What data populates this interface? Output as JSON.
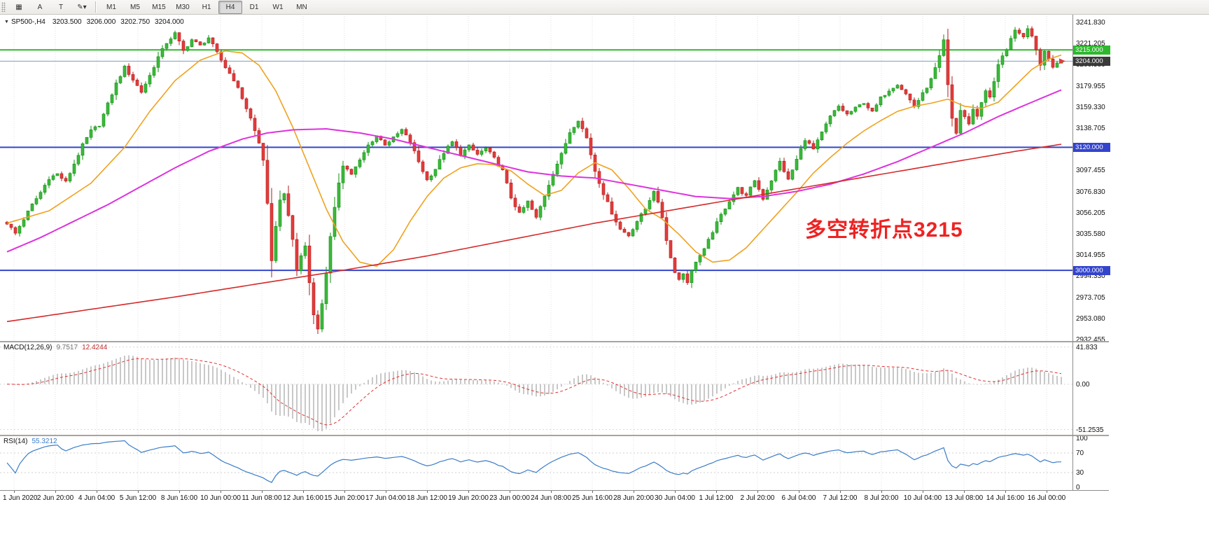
{
  "colors": {
    "up": "#0e8f0e",
    "up_fill": "#3cb83c",
    "down": "#b41818",
    "down_fill": "#e23c3c",
    "ma_fast": "#efa21e",
    "ma_mid": "#dd33dd",
    "ma_slow": "#d42a2a",
    "macd_hist": "#b5b5b5",
    "macd_signal": "#e03232",
    "rsi_line": "#3b7dc8",
    "grid": "#e2e2e2"
  },
  "toolbar": {
    "tools": [
      {
        "name": "grid-tool-button",
        "glyph": "▦"
      },
      {
        "name": "text-annotation-tool-button",
        "glyph": "A"
      },
      {
        "name": "text-tool-button",
        "glyph": "T"
      },
      {
        "name": "drawing-tools-dropdown-button",
        "glyph": "✎▾"
      }
    ],
    "timeframes": [
      "M1",
      "M5",
      "M15",
      "M30",
      "H1",
      "H4",
      "D1",
      "W1",
      "MN"
    ],
    "active_timeframe": "H4"
  },
  "header": {
    "dropdown_glyph": "▼",
    "symbol_period": "SP500-,H4",
    "open": "3203.500",
    "high": "3206.000",
    "low": "3202.750",
    "close": "3204.000"
  },
  "annotation": {
    "text": "多空转折点3215",
    "color": "#ee2222"
  },
  "price_axis": {
    "max": 3241.83,
    "step": 20.625,
    "ticks": [
      "3241.830",
      "3221.205",
      "3200.580",
      "3179.955",
      "3159.330",
      "3138.705",
      "3118.080",
      "3097.455",
      "3076.830",
      "3056.205",
      "3035.580",
      "3014.955",
      "2994.330",
      "2973.705",
      "2953.080",
      "2932.455"
    ]
  },
  "badges": [
    {
      "label": "3215.000",
      "value": 3215,
      "bg": "#2eb82e"
    },
    {
      "label": "3204.000",
      "value": 3204,
      "bg": "#3a3a3a"
    },
    {
      "label": "3120.000",
      "value": 3120,
      "bg": "#3344cc"
    },
    {
      "label": "3000.000",
      "value": 3000,
      "bg": "#3344cc"
    }
  ],
  "hlines": [
    {
      "value": 3215,
      "color": "#2eb82e",
      "width": 2
    },
    {
      "value": 3204,
      "color": "#7f9db9",
      "width": 1
    },
    {
      "value": 3120,
      "color": "#3344cc",
      "width": 2
    },
    {
      "value": 3000,
      "color": "#3344cc",
      "width": 2
    }
  ],
  "indicators": {
    "macd": {
      "label": "MACD(12,26,9)",
      "main_value": "9.7517",
      "signal_value": "12.4244",
      "scale": [
        "41.833",
        "0.00",
        "-51.2535"
      ],
      "fast": 12,
      "slow": 26,
      "signal": 9,
      "display_range": [
        -54,
        44
      ]
    },
    "rsi": {
      "label": "RSI(14)",
      "value": "55.3212",
      "period": 14,
      "levels": [
        "100",
        "70",
        "30",
        "0"
      ],
      "level_lines": [
        70,
        30
      ]
    }
  },
  "chart_data": {
    "type": "candlestick",
    "symbol": "SP500-",
    "period": "H4",
    "bars_total": 252,
    "price_min": 2932.455,
    "price_max": 3241.83,
    "x_labels": [
      "1 Jun 2020",
      "2 Jun 20:00",
      "4 Jun 04:00",
      "5 Jun 12:00",
      "8 Jun 16:00",
      "10 Jun 00:00",
      "11 Jun 08:00",
      "12 Jun 16:00",
      "15 Jun 20:00",
      "17 Jun 04:00",
      "18 Jun 12:00",
      "19 Jun 20:00",
      "23 Jun 00:00",
      "24 Jun 08:00",
      "25 Jun 16:00",
      "28 Jun 20:00",
      "30 Jun 04:00",
      "1 Jul 12:00",
      "2 Jul 20:00",
      "6 Jul 04:00",
      "7 Jul 12:00",
      "8 Jul 20:00",
      "10 Jul 04:00",
      "13 Jul 08:00",
      "14 Jul 16:00",
      "16 Jul 00:00"
    ],
    "close_keyframes": [
      [
        0,
        3046
      ],
      [
        2,
        3036
      ],
      [
        4,
        3050
      ],
      [
        6,
        3064
      ],
      [
        8,
        3076
      ],
      [
        10,
        3090
      ],
      [
        12,
        3094
      ],
      [
        14,
        3086
      ],
      [
        16,
        3104
      ],
      [
        18,
        3122
      ],
      [
        20,
        3136
      ],
      [
        22,
        3142
      ],
      [
        24,
        3162
      ],
      [
        26,
        3182
      ],
      [
        28,
        3198
      ],
      [
        30,
        3186
      ],
      [
        32,
        3174
      ],
      [
        34,
        3190
      ],
      [
        36,
        3208
      ],
      [
        38,
        3222
      ],
      [
        40,
        3231
      ],
      [
        42,
        3214
      ],
      [
        44,
        3225
      ],
      [
        46,
        3219
      ],
      [
        48,
        3227
      ],
      [
        50,
        3212
      ],
      [
        52,
        3198
      ],
      [
        54,
        3186
      ],
      [
        56,
        3168
      ],
      [
        58,
        3148
      ],
      [
        60,
        3124
      ],
      [
        61,
        3108
      ],
      [
        62,
        3064
      ],
      [
        63,
        3008
      ],
      [
        64,
        3044
      ],
      [
        65,
        3068
      ],
      [
        66,
        3076
      ],
      [
        67,
        3052
      ],
      [
        68,
        3030
      ],
      [
        69,
        3000
      ],
      [
        70,
        3014
      ],
      [
        71,
        3024
      ],
      [
        72,
        2988
      ],
      [
        73,
        2958
      ],
      [
        74,
        2942
      ],
      [
        75,
        2968
      ],
      [
        76,
        2998
      ],
      [
        77,
        3032
      ],
      [
        78,
        3060
      ],
      [
        79,
        3086
      ],
      [
        80,
        3103
      ],
      [
        82,
        3094
      ],
      [
        84,
        3107
      ],
      [
        86,
        3122
      ],
      [
        88,
        3131
      ],
      [
        90,
        3123
      ],
      [
        92,
        3129
      ],
      [
        94,
        3137
      ],
      [
        96,
        3125
      ],
      [
        98,
        3106
      ],
      [
        100,
        3088
      ],
      [
        102,
        3099
      ],
      [
        104,
        3115
      ],
      [
        106,
        3125
      ],
      [
        108,
        3113
      ],
      [
        110,
        3121
      ],
      [
        112,
        3113
      ],
      [
        114,
        3119
      ],
      [
        116,
        3109
      ],
      [
        118,
        3097
      ],
      [
        120,
        3071
      ],
      [
        122,
        3055
      ],
      [
        124,
        3067
      ],
      [
        126,
        3051
      ],
      [
        128,
        3073
      ],
      [
        130,
        3095
      ],
      [
        132,
        3113
      ],
      [
        134,
        3135
      ],
      [
        136,
        3147
      ],
      [
        138,
        3129
      ],
      [
        140,
        3097
      ],
      [
        142,
        3075
      ],
      [
        144,
        3056
      ],
      [
        146,
        3040
      ],
      [
        148,
        3034
      ],
      [
        150,
        3048
      ],
      [
        152,
        3060
      ],
      [
        154,
        3078
      ],
      [
        156,
        3052
      ],
      [
        157,
        3030
      ],
      [
        158,
        3012
      ],
      [
        159,
        2999
      ],
      [
        160,
        2991
      ],
      [
        161,
        2997
      ],
      [
        162,
        2989
      ],
      [
        163,
        2999
      ],
      [
        164,
        3009
      ],
      [
        166,
        3020
      ],
      [
        168,
        3038
      ],
      [
        170,
        3054
      ],
      [
        172,
        3068
      ],
      [
        174,
        3080
      ],
      [
        176,
        3072
      ],
      [
        178,
        3088
      ],
      [
        180,
        3070
      ],
      [
        182,
        3088
      ],
      [
        184,
        3106
      ],
      [
        186,
        3088
      ],
      [
        188,
        3108
      ],
      [
        190,
        3128
      ],
      [
        192,
        3118
      ],
      [
        194,
        3134
      ],
      [
        196,
        3150
      ],
      [
        198,
        3160
      ],
      [
        200,
        3152
      ],
      [
        202,
        3158
      ],
      [
        204,
        3164
      ],
      [
        206,
        3154
      ],
      [
        208,
        3168
      ],
      [
        210,
        3176
      ],
      [
        212,
        3182
      ],
      [
        214,
        3172
      ],
      [
        216,
        3160
      ],
      [
        218,
        3172
      ],
      [
        220,
        3186
      ],
      [
        222,
        3208
      ],
      [
        223,
        3224
      ],
      [
        224,
        3180
      ],
      [
        225,
        3148
      ],
      [
        226,
        3134
      ],
      [
        227,
        3156
      ],
      [
        228,
        3150
      ],
      [
        229,
        3142
      ],
      [
        230,
        3158
      ],
      [
        231,
        3150
      ],
      [
        232,
        3164
      ],
      [
        233,
        3176
      ],
      [
        234,
        3168
      ],
      [
        235,
        3184
      ],
      [
        236,
        3200
      ],
      [
        237,
        3210
      ],
      [
        238,
        3216
      ],
      [
        239,
        3226
      ],
      [
        240,
        3233
      ],
      [
        242,
        3227
      ],
      [
        243,
        3237
      ],
      [
        244,
        3227
      ],
      [
        245,
        3215
      ],
      [
        246,
        3201
      ],
      [
        247,
        3213
      ],
      [
        248,
        3207
      ],
      [
        249,
        3199
      ],
      [
        250,
        3203
      ],
      [
        251,
        3204
      ]
    ],
    "ma_fast_keyframes": [
      [
        0,
        3046
      ],
      [
        10,
        3058
      ],
      [
        20,
        3085
      ],
      [
        28,
        3120
      ],
      [
        34,
        3155
      ],
      [
        40,
        3185
      ],
      [
        46,
        3205
      ],
      [
        52,
        3214
      ],
      [
        56,
        3212
      ],
      [
        60,
        3200
      ],
      [
        64,
        3175
      ],
      [
        68,
        3140
      ],
      [
        72,
        3100
      ],
      [
        76,
        3060
      ],
      [
        80,
        3028
      ],
      [
        84,
        3008
      ],
      [
        88,
        3004
      ],
      [
        92,
        3020
      ],
      [
        96,
        3048
      ],
      [
        100,
        3072
      ],
      [
        104,
        3090
      ],
      [
        108,
        3100
      ],
      [
        112,
        3104
      ],
      [
        116,
        3103
      ],
      [
        120,
        3097
      ],
      [
        124,
        3084
      ],
      [
        128,
        3073
      ],
      [
        132,
        3078
      ],
      [
        136,
        3095
      ],
      [
        140,
        3105
      ],
      [
        144,
        3098
      ],
      [
        148,
        3080
      ],
      [
        152,
        3060
      ],
      [
        156,
        3050
      ],
      [
        160,
        3035
      ],
      [
        164,
        3018
      ],
      [
        168,
        3008
      ],
      [
        172,
        3010
      ],
      [
        176,
        3022
      ],
      [
        180,
        3040
      ],
      [
        184,
        3058
      ],
      [
        188,
        3076
      ],
      [
        192,
        3095
      ],
      [
        196,
        3110
      ],
      [
        200,
        3124
      ],
      [
        204,
        3136
      ],
      [
        208,
        3146
      ],
      [
        212,
        3155
      ],
      [
        216,
        3160
      ],
      [
        220,
        3163
      ],
      [
        224,
        3167
      ],
      [
        228,
        3160
      ],
      [
        232,
        3158
      ],
      [
        236,
        3164
      ],
      [
        240,
        3180
      ],
      [
        244,
        3196
      ],
      [
        248,
        3206
      ],
      [
        251,
        3210
      ]
    ],
    "ma_mid_keyframes": [
      [
        0,
        3018
      ],
      [
        8,
        3032
      ],
      [
        16,
        3048
      ],
      [
        24,
        3064
      ],
      [
        32,
        3082
      ],
      [
        40,
        3100
      ],
      [
        48,
        3116
      ],
      [
        56,
        3128
      ],
      [
        62,
        3134
      ],
      [
        68,
        3137
      ],
      [
        76,
        3138
      ],
      [
        84,
        3134
      ],
      [
        92,
        3128
      ],
      [
        100,
        3120
      ],
      [
        108,
        3112
      ],
      [
        116,
        3104
      ],
      [
        124,
        3096
      ],
      [
        132,
        3092
      ],
      [
        140,
        3090
      ],
      [
        148,
        3084
      ],
      [
        156,
        3078
      ],
      [
        164,
        3072
      ],
      [
        172,
        3070
      ],
      [
        180,
        3072
      ],
      [
        188,
        3077
      ],
      [
        196,
        3084
      ],
      [
        204,
        3094
      ],
      [
        212,
        3106
      ],
      [
        220,
        3120
      ],
      [
        228,
        3134
      ],
      [
        236,
        3150
      ],
      [
        244,
        3164
      ],
      [
        251,
        3176
      ]
    ],
    "ma_slow_keyframes": [
      [
        0,
        2950
      ],
      [
        20,
        2962
      ],
      [
        40,
        2974
      ],
      [
        60,
        2987
      ],
      [
        80,
        3000
      ],
      [
        100,
        3014
      ],
      [
        120,
        3030
      ],
      [
        140,
        3046
      ],
      [
        160,
        3060
      ],
      [
        180,
        3074
      ],
      [
        200,
        3088
      ],
      [
        220,
        3102
      ],
      [
        240,
        3116
      ],
      [
        251,
        3123
      ]
    ]
  }
}
